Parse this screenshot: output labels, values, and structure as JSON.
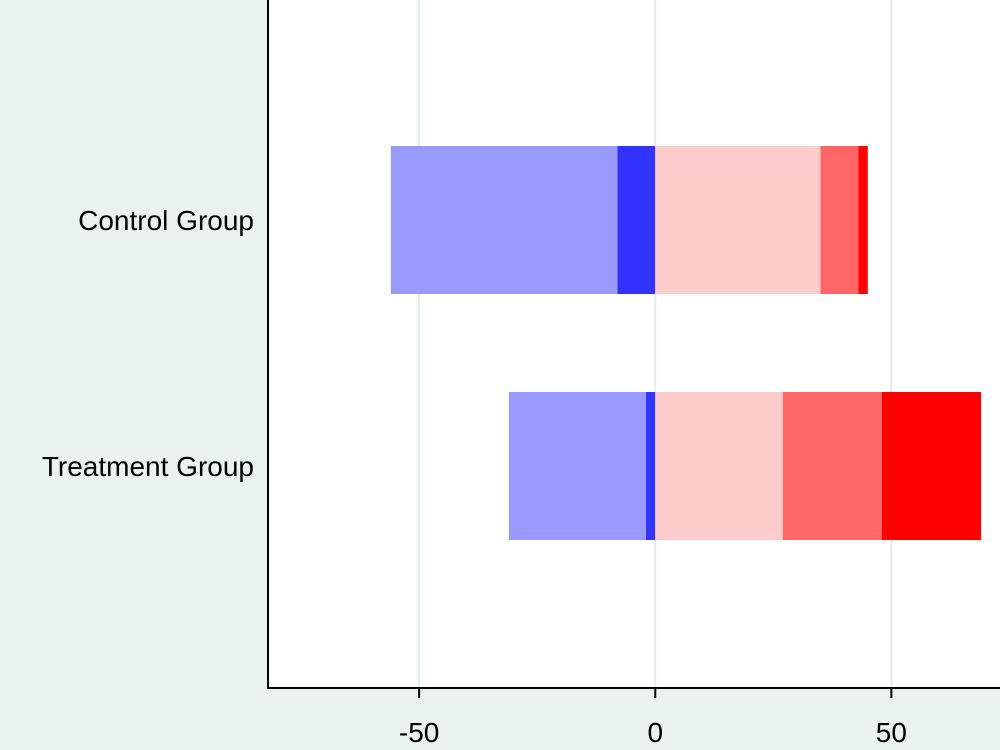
{
  "chart_data": {
    "type": "bar",
    "orientation": "horizontal",
    "stacked": "diverging",
    "title": "",
    "xlabel": "",
    "ylabel": "",
    "categories": [
      "Control Group",
      "Treatment Group"
    ],
    "series": [
      {
        "side": "negative",
        "color": "#3333ff",
        "values": [
          -8,
          -2
        ]
      },
      {
        "side": "negative",
        "color": "#9999ff",
        "values": [
          -48,
          -29
        ]
      },
      {
        "side": "positive",
        "color": "#ffcccc",
        "values": [
          35,
          27
        ]
      },
      {
        "side": "positive",
        "color": "#ff6666",
        "values": [
          8,
          21
        ]
      },
      {
        "side": "positive",
        "color": "#ff0000",
        "values": [
          2,
          21
        ]
      }
    ],
    "xticks": [
      "-50",
      "0",
      "50"
    ],
    "xtick_values": [
      -50,
      0,
      50
    ],
    "xlim": [
      -82,
      73
    ],
    "grid": true,
    "colors": {
      "plot_background": "#ffffff",
      "outer_background": "#eaf2f3",
      "gridline": "#e3eeef",
      "axis": "#000000"
    }
  }
}
